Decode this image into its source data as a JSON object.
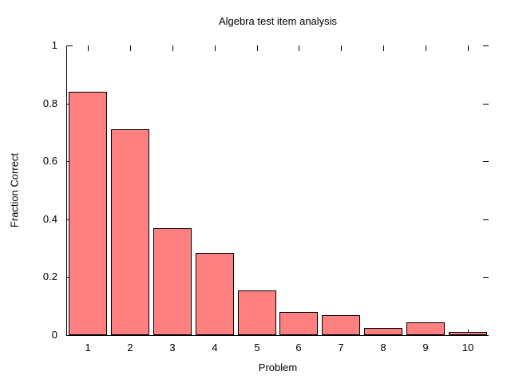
{
  "chart_data": {
    "type": "bar",
    "title": "Algebra test item analysis",
    "xlabel": "Problem",
    "ylabel": "Fraction Correct",
    "categories": [
      "1",
      "2",
      "3",
      "4",
      "5",
      "6",
      "7",
      "8",
      "9",
      "10"
    ],
    "values": [
      0.84,
      0.71,
      0.37,
      0.285,
      0.155,
      0.08,
      0.07,
      0.025,
      0.045,
      0.01
    ],
    "series_name": "Fraction Correct",
    "ylim": [
      0,
      1
    ],
    "yticks": [
      0,
      0.2,
      0.4,
      0.6,
      0.8,
      1
    ],
    "ytick_labels": [
      "0",
      "0.2",
      "0.4",
      "0.6",
      "0.8",
      "1"
    ],
    "grid": false,
    "legend_position": "none",
    "colors": {
      "bar_fill": "#ff8080",
      "bar_edge": "#000000",
      "axis": "#000000",
      "text": "#000000",
      "background": "#ffffff"
    }
  }
}
